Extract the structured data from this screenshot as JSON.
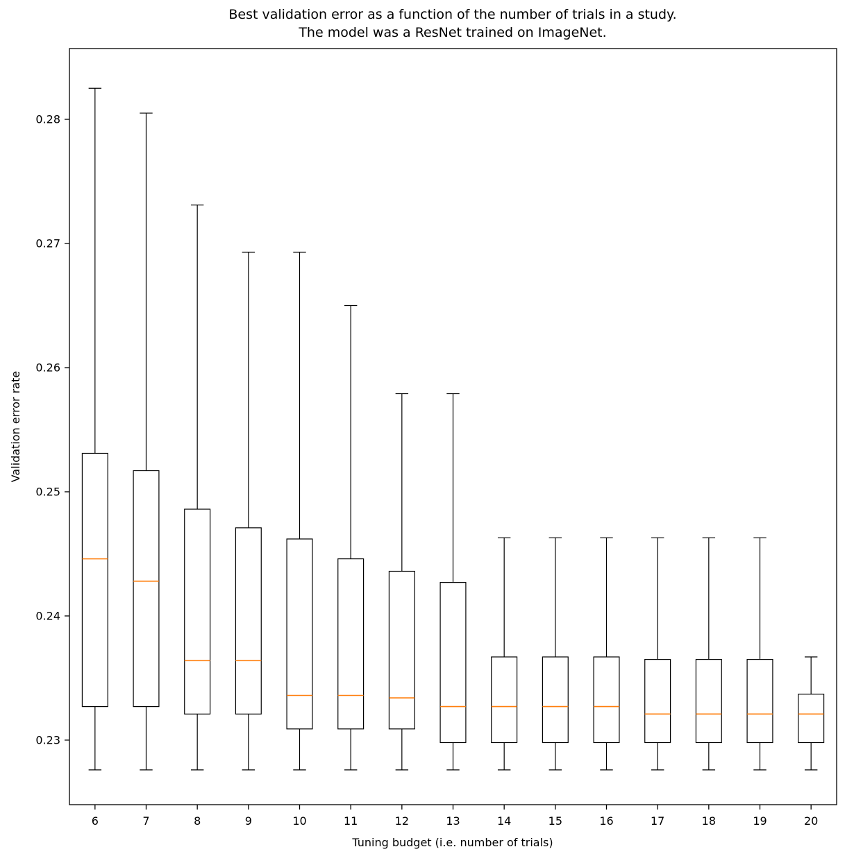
{
  "title": {
    "line1": "Best validation error as a function of the number of trials in a study.",
    "line2": "The model was a ResNet trained on ImageNet."
  },
  "chart_data": {
    "type": "boxplot",
    "title": "Best validation error as a function of the number of trials in a study. The model was a ResNet trained on ImageNet.",
    "xlabel": "Tuning budget (i.e. number of trials)",
    "ylabel": "Validation error rate",
    "categories": [
      6,
      7,
      8,
      9,
      10,
      11,
      12,
      13,
      14,
      15,
      16,
      17,
      18,
      19,
      20
    ],
    "ylim": [
      0.2248,
      0.2857
    ],
    "yticks": [
      {
        "value": 0.23,
        "label": "0.23"
      },
      {
        "value": 0.24,
        "label": "0.24"
      },
      {
        "value": 0.25,
        "label": "0.25"
      },
      {
        "value": 0.26,
        "label": "0.26"
      },
      {
        "value": 0.27,
        "label": "0.27"
      },
      {
        "value": 0.28,
        "label": "0.28"
      }
    ],
    "grid": false,
    "legend": "none",
    "box_color": "#000000",
    "median_color": "#ff7f0e",
    "boxes": [
      {
        "x": "6",
        "whisker_low": 0.2276,
        "q1": 0.2327,
        "median": 0.2446,
        "q3": 0.2531,
        "whisker_high": 0.2825
      },
      {
        "x": "7",
        "whisker_low": 0.2276,
        "q1": 0.2327,
        "median": 0.2428,
        "q3": 0.2517,
        "whisker_high": 0.2805
      },
      {
        "x": "8",
        "whisker_low": 0.2276,
        "q1": 0.2321,
        "median": 0.2364,
        "q3": 0.2486,
        "whisker_high": 0.2731
      },
      {
        "x": "9",
        "whisker_low": 0.2276,
        "q1": 0.2321,
        "median": 0.2364,
        "q3": 0.2471,
        "whisker_high": 0.2693
      },
      {
        "x": "10",
        "whisker_low": 0.2276,
        "q1": 0.2309,
        "median": 0.2336,
        "q3": 0.2462,
        "whisker_high": 0.2693
      },
      {
        "x": "11",
        "whisker_low": 0.2276,
        "q1": 0.2309,
        "median": 0.2336,
        "q3": 0.2446,
        "whisker_high": 0.265
      },
      {
        "x": "12",
        "whisker_low": 0.2276,
        "q1": 0.2309,
        "median": 0.2334,
        "q3": 0.2436,
        "whisker_high": 0.2579
      },
      {
        "x": "13",
        "whisker_low": 0.2276,
        "q1": 0.2298,
        "median": 0.2327,
        "q3": 0.2427,
        "whisker_high": 0.2579
      },
      {
        "x": "14",
        "whisker_low": 0.2276,
        "q1": 0.2298,
        "median": 0.2327,
        "q3": 0.2367,
        "whisker_high": 0.2463
      },
      {
        "x": "15",
        "whisker_low": 0.2276,
        "q1": 0.2298,
        "median": 0.2327,
        "q3": 0.2367,
        "whisker_high": 0.2463
      },
      {
        "x": "16",
        "whisker_low": 0.2276,
        "q1": 0.2298,
        "median": 0.2327,
        "q3": 0.2367,
        "whisker_high": 0.2463
      },
      {
        "x": "17",
        "whisker_low": 0.2276,
        "q1": 0.2298,
        "median": 0.2321,
        "q3": 0.2365,
        "whisker_high": 0.2463
      },
      {
        "x": "18",
        "whisker_low": 0.2276,
        "q1": 0.2298,
        "median": 0.2321,
        "q3": 0.2365,
        "whisker_high": 0.2463
      },
      {
        "x": "19",
        "whisker_low": 0.2276,
        "q1": 0.2298,
        "median": 0.2321,
        "q3": 0.2365,
        "whisker_high": 0.2463
      },
      {
        "x": "20",
        "whisker_low": 0.2276,
        "q1": 0.2298,
        "median": 0.2321,
        "q3": 0.2337,
        "whisker_high": 0.2367
      }
    ]
  }
}
